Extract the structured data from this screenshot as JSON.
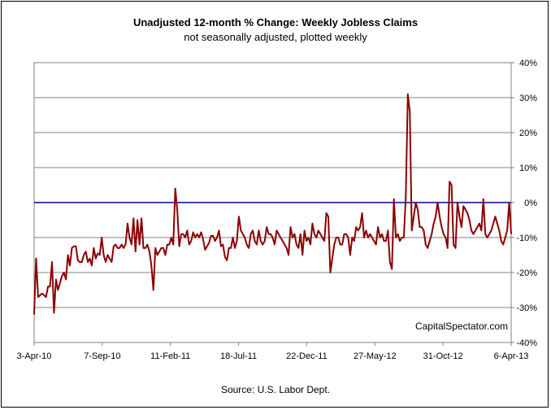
{
  "chart_data": {
    "type": "line",
    "title": "Unadjusted 12-month %  Change: Weekly Jobless Claims",
    "subtitle": "not seasonally adjusted, plotted weekly",
    "source": "Source: U.S. Labor Dept.",
    "watermark": "CapitalSpectator.com",
    "ylim": [
      -40,
      40
    ],
    "y_tick_labels": [
      "40%",
      "30%",
      "20%",
      "10%",
      "0%",
      "-10%",
      "-20%",
      "-30%",
      "-40%"
    ],
    "x_tick_labels": [
      "3-Apr-10",
      "7-Sep-10",
      "11-Feb-11",
      "18-Jul-11",
      "22-Dec-11",
      "27-May-12",
      "31-Oct-12",
      "6-Apr-13"
    ],
    "grid": true,
    "reference_line": {
      "value": 0,
      "color": "#00009C"
    },
    "series_color": "#8B0000",
    "series": [
      {
        "values": [
          -32,
          -16,
          -27,
          -26.5,
          -26,
          -26.5,
          -27,
          -24,
          -24,
          -17,
          -31.5,
          -22,
          -25,
          -23,
          -21,
          -20,
          -22,
          -15,
          -18,
          -13,
          -12.5,
          -12.5,
          -16.5,
          -17,
          -17,
          -15,
          -14,
          -17,
          -16,
          -18,
          -13,
          -16,
          -14.5,
          -15,
          -10,
          -15,
          -17,
          -15,
          -16,
          -17,
          -12.5,
          -12,
          -13,
          -13,
          -12,
          -13,
          -12,
          -6,
          -10,
          -12,
          -4.5,
          -14,
          -5,
          -12,
          -4.5,
          -13,
          -13,
          -12,
          -14,
          -18,
          -25,
          -13,
          -15,
          -14,
          -13,
          -13,
          -15,
          -12,
          -12,
          -10,
          -12,
          4,
          -2,
          -12.5,
          -9,
          -9,
          -10,
          -8,
          -12,
          -11,
          -8.5,
          -10,
          -9,
          -10,
          -8.5,
          -10.5,
          -13.5,
          -12.5,
          -11.5,
          -9.5,
          -9.5,
          -11,
          -10,
          -8,
          -12.5,
          -12,
          -15.5,
          -16.5,
          -13,
          -13,
          -10,
          -13,
          -11,
          -4,
          -8,
          -9,
          -10,
          -12,
          -13,
          -9,
          -8,
          -11,
          -12,
          -8,
          -11,
          -12,
          -11,
          -7,
          -9,
          -9,
          -10,
          -12,
          -8,
          -9,
          -10,
          -11,
          -12,
          -13,
          -15,
          -7,
          -10,
          -9,
          -12,
          -13,
          -9,
          -15,
          -8,
          -11,
          -10,
          -12,
          -6,
          -9,
          -10,
          -8,
          -9,
          -10,
          -11,
          -3,
          -4,
          -20,
          -16,
          -12,
          -10,
          -10,
          -12,
          -12,
          -9,
          -9,
          -10,
          -15,
          -10,
          -11,
          -7,
          -8,
          -7,
          -3,
          -10,
          -8,
          -10,
          -9,
          -10,
          -11,
          -12,
          -7,
          -10,
          -9,
          -11,
          -11,
          -8,
          -17,
          -19,
          1,
          -10,
          -9,
          -11,
          -10,
          -10,
          2,
          31,
          26,
          -8,
          -4,
          0,
          -2,
          -7,
          -7,
          -8,
          -12,
          -13,
          -11,
          -9,
          -6,
          -4,
          0,
          -4,
          -7,
          -9,
          -10,
          -13,
          6,
          5,
          -12,
          -13,
          0,
          -4,
          -7,
          -1,
          -2,
          -3,
          -5,
          -8,
          -9,
          -8,
          -7,
          -6,
          -8,
          1,
          -9,
          -10,
          -9,
          -8,
          -6,
          -4,
          -6,
          -8,
          -11,
          -12,
          -10,
          -8,
          0,
          -9
        ]
      }
    ]
  }
}
